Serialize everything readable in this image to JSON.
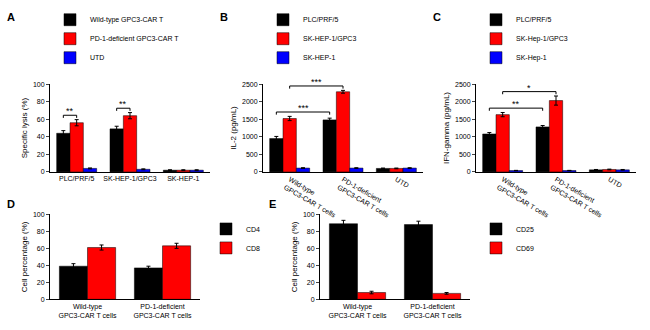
{
  "chart_data": [
    {
      "type": "bar",
      "label": "A",
      "y_label": "Specific lysis (%)",
      "categories": [
        "PLC/PRF/5",
        "SK-HEP-1/GPC3",
        "SK-HEP-1"
      ],
      "series": [
        {
          "name": "Wild-type GPC3-CAR T",
          "color": "#000000",
          "values": [
            44,
            49,
            2
          ],
          "errors": [
            3,
            3,
            0.5
          ]
        },
        {
          "name": "PD-1-deficient GPC3-CAR T",
          "color": "#ff0000",
          "values": [
            56,
            64,
            2
          ],
          "errors": [
            3.5,
            3.5,
            0.5
          ]
        },
        {
          "name": "UTD",
          "color": "#0000ff",
          "values": [
            4,
            3,
            2
          ],
          "errors": [
            0.5,
            0.5,
            0.5
          ]
        }
      ],
      "ylim": [
        0,
        100
      ],
      "yticks": [
        0,
        20,
        40,
        60,
        80,
        100
      ],
      "grid": false,
      "legend": "top",
      "significance": [
        {
          "text": "**",
          "category": "PLC/PRF/5",
          "series": [
            "Wild-type GPC3-CAR T",
            "PD-1-deficient GPC3-CAR T"
          ]
        },
        {
          "text": "**",
          "category": "SK-HEP-1/GPC3",
          "series": [
            "Wild-type GPC3-CAR T",
            "PD-1-deficient GPC3-CAR T"
          ]
        }
      ]
    },
    {
      "type": "bar",
      "label": "B",
      "y_label": "IL-2 (pg/mL)",
      "categories": [
        "Wild-type GPC3-CAR T cells",
        "PD-1-deficient GPC3-CAR T cells",
        "UTD"
      ],
      "series": [
        {
          "name": "PLC/PRF/5",
          "color": "#000000",
          "values": [
            950,
            1480,
            100
          ],
          "errors": [
            60,
            50,
            10
          ]
        },
        {
          "name": "SK-HEP-1/GPC3",
          "color": "#ff0000",
          "values": [
            1520,
            2280,
            100
          ],
          "errors": [
            60,
            40,
            10
          ]
        },
        {
          "name": "SK-HEP-1",
          "color": "#0000ff",
          "values": [
            110,
            110,
            110
          ],
          "errors": [
            10,
            10,
            10
          ]
        }
      ],
      "ylim": [
        0,
        2500
      ],
      "yticks": [
        0,
        500,
        1000,
        1500,
        2000,
        2500
      ],
      "grid": false,
      "legend": "top",
      "significance": [
        {
          "text": "***",
          "series": "PLC/PRF/5",
          "categories": [
            "Wild-type GPC3-CAR T cells",
            "PD-1-deficient GPC3-CAR T cells"
          ]
        },
        {
          "text": "***",
          "series": "SK-HEP-1/GPC3",
          "categories": [
            "Wild-type GPC3-CAR T cells",
            "PD-1-deficient GPC3-CAR T cells"
          ]
        }
      ]
    },
    {
      "type": "bar",
      "label": "C",
      "y_label": "IFN-gamma (pg/mL)",
      "categories": [
        "Wild-type GPC3-CAR T cells",
        "PD-1-deficient GPC3-CAR T cells",
        "UTD"
      ],
      "series": [
        {
          "name": "PLC/PRF/5",
          "color": "#000000",
          "values": [
            1080,
            1280,
            60
          ],
          "errors": [
            40,
            40,
            10
          ]
        },
        {
          "name": "SK-Hep-1/GPC3",
          "color": "#ff0000",
          "values": [
            1630,
            2030,
            70
          ],
          "errors": [
            60,
            130,
            10
          ]
        },
        {
          "name": "SK-Hep-1",
          "color": "#0000ff",
          "values": [
            40,
            40,
            60
          ],
          "errors": [
            5,
            5,
            10
          ]
        }
      ],
      "ylim": [
        0,
        2500
      ],
      "yticks": [
        0,
        500,
        1000,
        1500,
        2000,
        2500
      ],
      "grid": false,
      "legend": "top",
      "significance": [
        {
          "text": "**",
          "series": "PLC/PRF/5",
          "categories": [
            "Wild-type GPC3-CAR T cells",
            "PD-1-deficient GPC3-CAR T cells"
          ]
        },
        {
          "text": "*",
          "series": "SK-Hep-1/GPC3",
          "categories": [
            "Wild-type GPC3-CAR T cells",
            "PD-1-deficient GPC3-CAR T cells"
          ]
        }
      ]
    },
    {
      "type": "bar",
      "label": "D",
      "y_label": "Cell percentage (%)",
      "categories": [
        "Wild-type GPC3-CAR T cells",
        "PD-1-deficient GPC3-CAR T cells"
      ],
      "series": [
        {
          "name": "CD4",
          "color": "#000000",
          "values": [
            39,
            37
          ],
          "errors": [
            3,
            2
          ]
        },
        {
          "name": "CD8",
          "color": "#ff0000",
          "values": [
            61,
            63
          ],
          "errors": [
            3,
            3
          ]
        }
      ],
      "ylim": [
        0,
        100
      ],
      "yticks": [
        0,
        20,
        40,
        60,
        80,
        100
      ],
      "grid": false,
      "legend": "right"
    },
    {
      "type": "bar",
      "label": "E",
      "y_label": "Cell percentage (%)",
      "categories": [
        "Wild-type GPC3-CAR T cells",
        "PD-1-deficient GPC3-CAR T cells"
      ],
      "series": [
        {
          "name": "CD25",
          "color": "#000000",
          "values": [
            89,
            88
          ],
          "errors": [
            4,
            4
          ]
        },
        {
          "name": "CD69",
          "color": "#ff0000",
          "values": [
            8,
            7
          ],
          "errors": [
            1.5,
            1
          ]
        }
      ],
      "ylim": [
        0,
        100
      ],
      "yticks": [
        0,
        20,
        40,
        60,
        80,
        100
      ],
      "grid": false,
      "legend": "right"
    }
  ]
}
